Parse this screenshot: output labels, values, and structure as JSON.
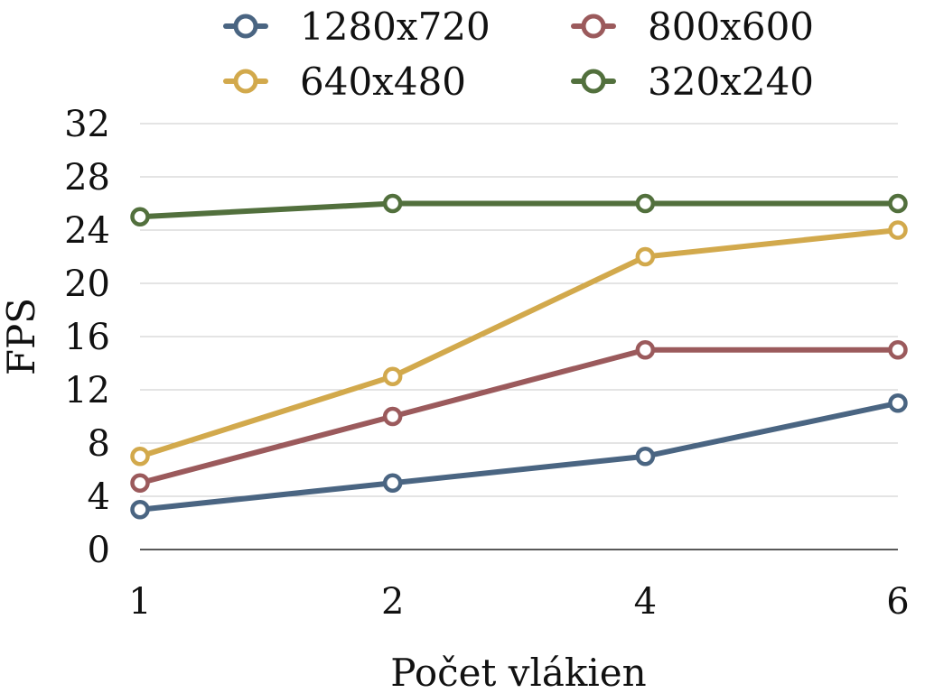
{
  "chart_data": {
    "type": "line",
    "title": "",
    "xlabel": "Počet vlákien",
    "ylabel": "FPS",
    "categories": [
      "1",
      "2",
      "4",
      "6"
    ],
    "ylim": [
      0,
      32
    ],
    "yticks": [
      0,
      4,
      8,
      12,
      16,
      20,
      24,
      28,
      32
    ],
    "grid": true,
    "legend_position": "top",
    "series": [
      {
        "name": "1280x720",
        "color": "#4a6582",
        "values": [
          3,
          5,
          7,
          11
        ]
      },
      {
        "name": "800x600",
        "color": "#9b5a5c",
        "values": [
          5,
          10,
          15,
          15
        ]
      },
      {
        "name": "640x480",
        "color": "#d2a94c",
        "values": [
          7,
          13,
          22,
          24
        ]
      },
      {
        "name": "320x240",
        "color": "#52703d",
        "values": [
          25,
          26,
          26,
          26
        ]
      }
    ]
  }
}
